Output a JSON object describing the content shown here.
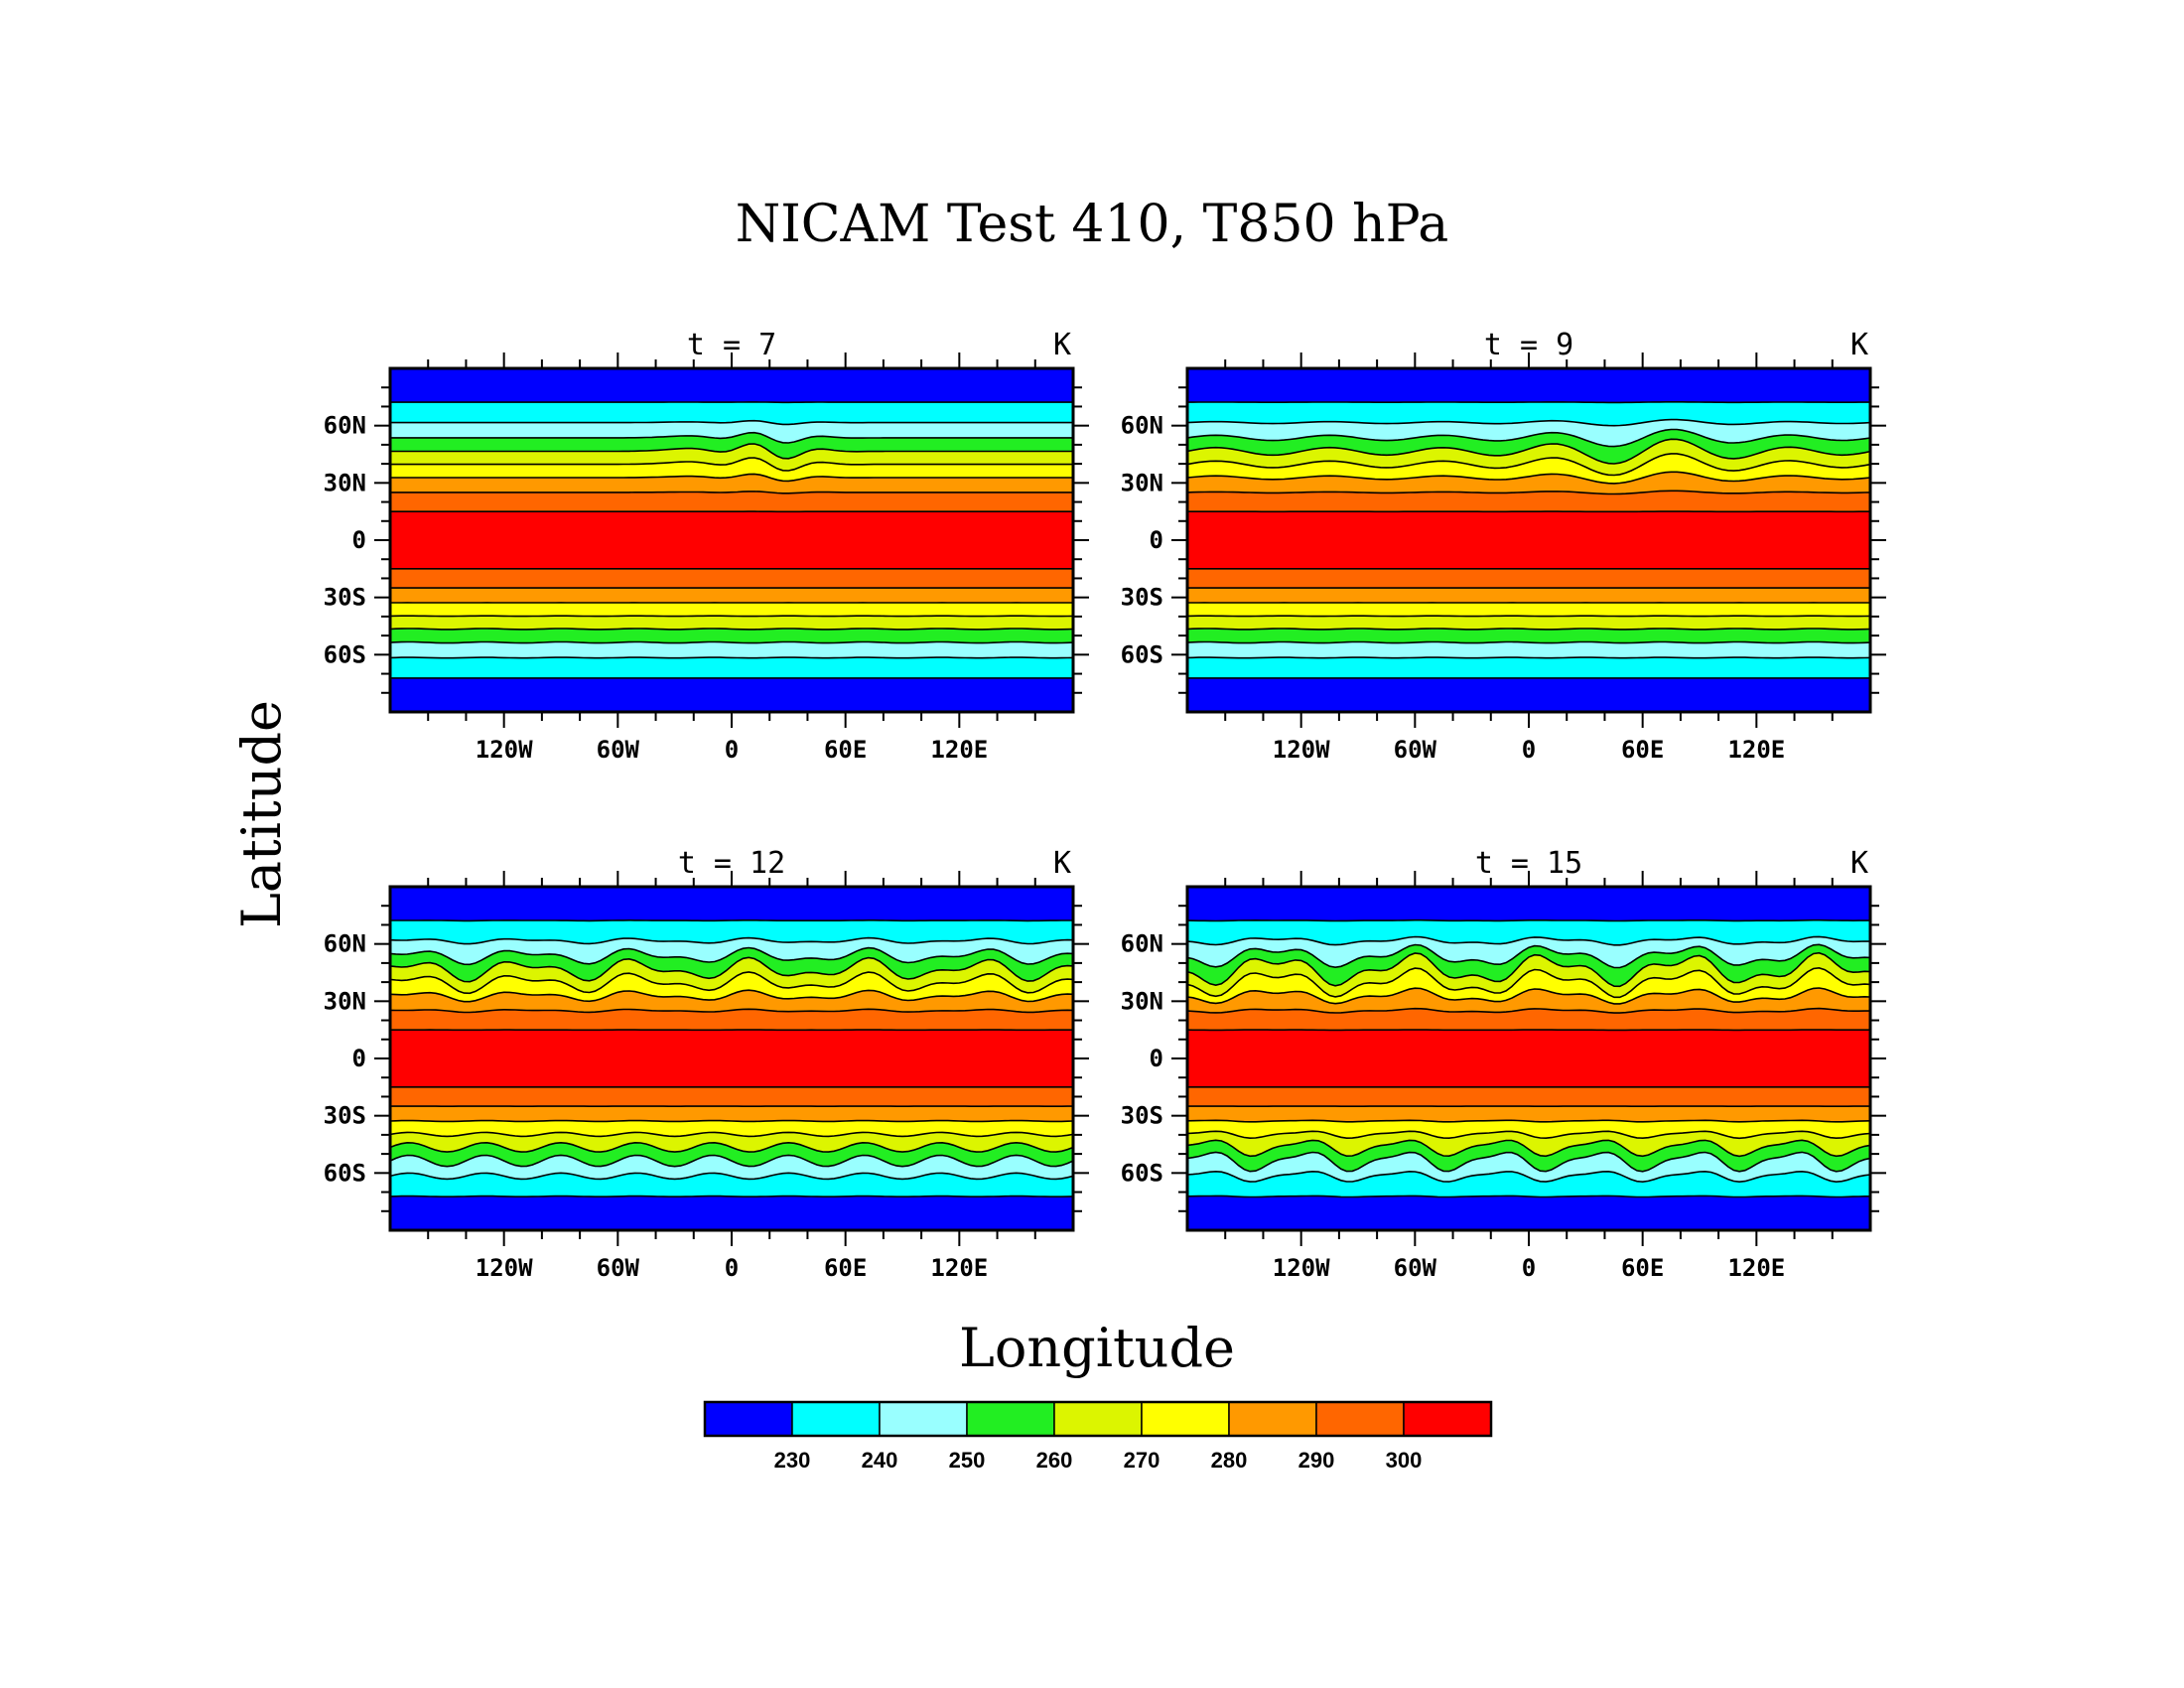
{
  "chart_data": {
    "type": "heatmap",
    "title": "NICAM Test 410, T850 hPa",
    "xlabel": "Longitude",
    "ylabel": "Latitude",
    "units": "K",
    "x_ticks": [
      "120W",
      "60W",
      "0",
      "60E",
      "120E"
    ],
    "x_tick_values": [
      -120,
      -60,
      0,
      60,
      120
    ],
    "y_ticks": [
      "60N",
      "30N",
      "0",
      "30S",
      "60S"
    ],
    "y_tick_values": [
      60,
      30,
      0,
      -30,
      -60
    ],
    "xlim": [
      -180,
      180
    ],
    "ylim": [
      -90,
      90
    ],
    "contour_levels": [
      230,
      240,
      250,
      260,
      270,
      280,
      290,
      300
    ],
    "colorbar_labels": [
      "230",
      "240",
      "250",
      "260",
      "270",
      "280",
      "290",
      "300"
    ],
    "colorbar_colors": [
      "#0000ff",
      "#00ffff",
      "#99ffff",
      "#22ee22",
      "#dcf500",
      "#ffff00",
      "#ff9900",
      "#ff6600",
      "#ff0000"
    ],
    "colorbar_position": "bottom",
    "panels": [
      {
        "title": "t = 7",
        "units": "K",
        "day": 7
      },
      {
        "title": "t = 9",
        "units": "K",
        "day": 9
      },
      {
        "title": "t = 12",
        "units": "K",
        "day": 12
      },
      {
        "title": "t = 15",
        "units": "K",
        "day": 15
      }
    ]
  }
}
